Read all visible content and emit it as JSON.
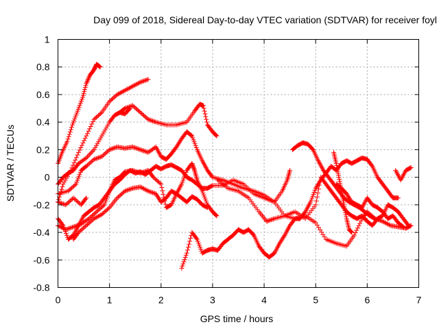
{
  "chart_data": {
    "type": "scatter",
    "title": "Day 099 of 2018, Sidereal Day-to-day VTEC variation (SDTVAR) for receiver foyl",
    "xlabel": "GPS time / hours",
    "ylabel": "SDTVAR / TECUs",
    "xlim": [
      0,
      7
    ],
    "ylim": [
      -0.8,
      1.0
    ],
    "xticks": [
      "0",
      "1",
      "2",
      "3",
      "4",
      "5",
      "6",
      "7"
    ],
    "yticks": [
      "1",
      "0.8",
      "0.6",
      "0.4",
      "0.2",
      "0",
      "-0.2",
      "-0.4",
      "-0.6",
      "-0.8"
    ],
    "grid": true,
    "marker": "+",
    "color": "#ff0000",
    "traces": [
      [
        [
          0.0,
          0.1
        ],
        [
          0.08,
          0.18
        ],
        [
          0.18,
          0.26
        ],
        [
          0.28,
          0.38
        ],
        [
          0.38,
          0.48
        ],
        [
          0.48,
          0.58
        ],
        [
          0.55,
          0.68
        ],
        [
          0.62,
          0.74
        ],
        [
          0.7,
          0.78
        ],
        [
          0.75,
          0.82
        ],
        [
          0.82,
          0.8
        ]
      ],
      [
        [
          0.0,
          -0.18
        ],
        [
          0.1,
          -0.05
        ],
        [
          0.25,
          0.05
        ],
        [
          0.4,
          0.18
        ],
        [
          0.55,
          0.3
        ],
        [
          0.7,
          0.42
        ],
        [
          0.85,
          0.47
        ],
        [
          1.0,
          0.55
        ],
        [
          1.15,
          0.6
        ],
        [
          1.3,
          0.63
        ],
        [
          1.45,
          0.66
        ],
        [
          1.6,
          0.69
        ],
        [
          1.75,
          0.71
        ]
      ],
      [
        [
          0.0,
          -0.05
        ],
        [
          0.1,
          0.0
        ],
        [
          0.2,
          0.03
        ],
        [
          0.3,
          0.05
        ],
        [
          0.4,
          0.1
        ],
        [
          0.55,
          0.14
        ],
        [
          0.7,
          0.2
        ],
        [
          0.85,
          0.3
        ],
        [
          1.0,
          0.4
        ],
        [
          1.1,
          0.45
        ],
        [
          1.2,
          0.47
        ],
        [
          1.3,
          0.5
        ],
        [
          1.45,
          0.52
        ],
        [
          1.6,
          0.47
        ],
        [
          1.75,
          0.42
        ],
        [
          1.9,
          0.4
        ],
        [
          2.1,
          0.38
        ],
        [
          2.3,
          0.38
        ],
        [
          2.5,
          0.4
        ],
        [
          2.65,
          0.48
        ],
        [
          2.75,
          0.53
        ],
        [
          2.82,
          0.52
        ],
        [
          2.9,
          0.38
        ],
        [
          3.0,
          0.33
        ],
        [
          3.08,
          0.3
        ]
      ],
      [
        [
          1.2,
          0.47
        ],
        [
          1.3,
          0.46
        ],
        [
          1.4,
          0.5
        ]
      ],
      [
        [
          0.0,
          -0.12
        ],
        [
          0.2,
          -0.1
        ],
        [
          0.35,
          -0.05
        ],
        [
          0.45,
          0.05
        ],
        [
          0.55,
          0.08
        ],
        [
          0.7,
          0.13
        ],
        [
          0.85,
          0.15
        ],
        [
          1.0,
          0.2
        ],
        [
          1.15,
          0.22
        ],
        [
          1.3,
          0.21
        ],
        [
          1.45,
          0.22
        ],
        [
          1.6,
          0.2
        ],
        [
          1.75,
          0.18
        ],
        [
          1.9,
          0.22
        ],
        [
          2.0,
          0.15
        ],
        [
          2.1,
          0.13
        ],
        [
          2.2,
          0.17
        ],
        [
          2.3,
          0.22
        ],
        [
          2.4,
          0.28
        ],
        [
          2.5,
          0.33
        ],
        [
          2.6,
          0.3
        ],
        [
          2.7,
          0.2
        ],
        [
          2.8,
          0.12
        ],
        [
          2.9,
          0.05
        ],
        [
          3.0,
          0.0
        ],
        [
          3.2,
          -0.02
        ],
        [
          3.4,
          -0.05
        ],
        [
          3.6,
          -0.08
        ],
        [
          3.8,
          -0.1
        ],
        [
          4.0,
          -0.13
        ],
        [
          4.2,
          -0.18
        ],
        [
          4.35,
          -0.1
        ],
        [
          4.45,
          -0.02
        ],
        [
          4.5,
          0.05
        ]
      ],
      [
        [
          0.0,
          -0.35
        ],
        [
          0.15,
          -0.38
        ],
        [
          0.3,
          -0.36
        ],
        [
          0.45,
          -0.34
        ],
        [
          0.6,
          -0.3
        ],
        [
          0.75,
          -0.25
        ],
        [
          0.9,
          -0.2
        ],
        [
          1.0,
          -0.1
        ],
        [
          1.1,
          -0.02
        ],
        [
          1.2,
          0.0
        ],
        [
          1.3,
          0.04
        ],
        [
          1.45,
          0.05
        ],
        [
          1.6,
          0.03
        ],
        [
          1.75,
          0.05
        ],
        [
          1.85,
          0.0
        ],
        [
          2.0,
          -0.05
        ],
        [
          2.1,
          -0.22
        ],
        [
          2.2,
          -0.2
        ],
        [
          2.3,
          -0.12
        ],
        [
          2.4,
          -0.05
        ],
        [
          2.5,
          0.05
        ],
        [
          2.6,
          0.1
        ],
        [
          2.65,
          0.05
        ],
        [
          2.7,
          -0.02
        ],
        [
          2.8,
          -0.1
        ],
        [
          2.9,
          -0.2
        ],
        [
          3.0,
          -0.25
        ],
        [
          3.08,
          -0.28
        ]
      ],
      [
        [
          0.0,
          -0.18
        ],
        [
          0.15,
          -0.2
        ],
        [
          0.3,
          -0.15
        ],
        [
          0.45,
          -0.2
        ],
        [
          0.55,
          -0.15
        ]
      ],
      [
        [
          0.0,
          -0.3
        ],
        [
          0.1,
          -0.35
        ],
        [
          0.2,
          -0.45
        ],
        [
          0.3,
          -0.42
        ],
        [
          0.4,
          -0.35
        ],
        [
          0.5,
          -0.28
        ],
        [
          0.6,
          -0.25
        ],
        [
          0.7,
          -0.22
        ],
        [
          0.8,
          -0.2
        ],
        [
          0.9,
          -0.15
        ],
        [
          1.0,
          -0.1
        ],
        [
          1.1,
          -0.05
        ],
        [
          1.2,
          -0.02
        ],
        [
          1.3,
          0.02
        ],
        [
          1.4,
          0.05
        ],
        [
          1.5,
          0.03
        ],
        [
          1.6,
          0.04
        ],
        [
          1.7,
          0.02
        ],
        [
          1.8,
          0.05
        ],
        [
          1.9,
          0.08
        ],
        [
          2.0,
          0.06
        ],
        [
          2.1,
          0.08
        ],
        [
          2.2,
          0.09
        ],
        [
          2.3,
          0.07
        ],
        [
          2.4,
          0.05
        ],
        [
          2.5,
          0.0
        ],
        [
          2.6,
          -0.02
        ],
        [
          2.7,
          -0.05
        ],
        [
          2.8,
          -0.08
        ],
        [
          2.9,
          -0.08
        ],
        [
          3.0,
          -0.06
        ],
        [
          3.2,
          -0.06
        ],
        [
          3.4,
          -0.02
        ],
        [
          3.6,
          -0.05
        ],
        [
          3.8,
          -0.12
        ],
        [
          4.0,
          -0.15
        ],
        [
          4.2,
          -0.18
        ],
        [
          4.4,
          -0.28
        ],
        [
          4.6,
          -0.3
        ],
        [
          4.8,
          -0.28
        ],
        [
          5.0,
          -0.33
        ],
        [
          5.2,
          -0.45
        ],
        [
          5.4,
          -0.48
        ],
        [
          5.6,
          -0.5
        ],
        [
          5.75,
          -0.42
        ],
        [
          5.9,
          -0.3
        ],
        [
          6.0,
          -0.25
        ],
        [
          6.15,
          -0.3
        ],
        [
          6.3,
          -0.32
        ],
        [
          6.45,
          -0.35
        ],
        [
          6.6,
          -0.36
        ],
        [
          6.75,
          -0.37
        ],
        [
          6.85,
          -0.35
        ]
      ],
      [
        [
          0.3,
          -0.45
        ],
        [
          0.4,
          -0.4
        ],
        [
          0.55,
          -0.35
        ],
        [
          0.7,
          -0.3
        ],
        [
          0.85,
          -0.27
        ],
        [
          1.0,
          -0.22
        ],
        [
          1.15,
          -0.15
        ],
        [
          1.3,
          -0.1
        ],
        [
          1.45,
          -0.08
        ],
        [
          1.6,
          -0.07
        ],
        [
          1.75,
          -0.1
        ],
        [
          1.9,
          -0.12
        ],
        [
          2.0,
          -0.18
        ],
        [
          2.1,
          -0.15
        ],
        [
          2.2,
          -0.1
        ],
        [
          2.3,
          -0.12
        ],
        [
          2.4,
          -0.15
        ],
        [
          2.5,
          -0.18
        ],
        [
          2.6,
          -0.14
        ],
        [
          2.7,
          -0.16
        ],
        [
          2.8,
          -0.2
        ],
        [
          2.9,
          -0.22
        ]
      ],
      [
        [
          2.4,
          -0.66
        ],
        [
          2.5,
          -0.55
        ],
        [
          2.6,
          -0.4
        ],
        [
          2.7,
          -0.45
        ],
        [
          2.8,
          -0.55
        ],
        [
          2.9,
          -0.53
        ],
        [
          3.0,
          -0.52
        ],
        [
          3.1,
          -0.53
        ],
        [
          3.2,
          -0.48
        ],
        [
          3.3,
          -0.45
        ],
        [
          3.4,
          -0.42
        ],
        [
          3.5,
          -0.38
        ],
        [
          3.6,
          -0.4
        ],
        [
          3.7,
          -0.38
        ],
        [
          3.8,
          -0.42
        ],
        [
          3.9,
          -0.5
        ],
        [
          4.0,
          -0.55
        ],
        [
          4.1,
          -0.58
        ],
        [
          4.2,
          -0.55
        ],
        [
          4.3,
          -0.48
        ],
        [
          4.4,
          -0.42
        ],
        [
          4.5,
          -0.35
        ],
        [
          4.6,
          -0.3
        ],
        [
          4.7,
          -0.3
        ],
        [
          4.8,
          -0.25
        ],
        [
          4.9,
          -0.18
        ],
        [
          5.0,
          -0.08
        ],
        [
          5.1,
          -0.02
        ],
        [
          5.2,
          0.03
        ],
        [
          5.3,
          0.08
        ],
        [
          5.4,
          0.05
        ],
        [
          5.5,
          0.1
        ],
        [
          5.6,
          0.12
        ],
        [
          5.7,
          0.1
        ],
        [
          5.8,
          0.12
        ],
        [
          5.9,
          0.14
        ],
        [
          6.0,
          0.13
        ],
        [
          6.1,
          0.08
        ],
        [
          6.2,
          0.0
        ],
        [
          6.3,
          -0.05
        ],
        [
          6.4,
          -0.1
        ],
        [
          6.5,
          -0.15
        ],
        [
          6.6,
          -0.15
        ]
      ],
      [
        [
          3.1,
          -0.02
        ],
        [
          3.3,
          -0.08
        ],
        [
          3.5,
          -0.1
        ],
        [
          3.7,
          -0.15
        ],
        [
          3.9,
          -0.25
        ],
        [
          4.05,
          -0.32
        ],
        [
          4.2,
          -0.3
        ],
        [
          4.4,
          -0.28
        ],
        [
          4.6,
          -0.25
        ],
        [
          4.8,
          -0.3
        ],
        [
          5.0,
          -0.2
        ],
        [
          5.1,
          0.0
        ],
        [
          5.2,
          -0.05
        ],
        [
          5.3,
          -0.1
        ],
        [
          5.4,
          -0.15
        ],
        [
          5.5,
          -0.2
        ],
        [
          5.6,
          -0.25
        ],
        [
          5.7,
          -0.28
        ],
        [
          5.8,
          -0.3
        ],
        [
          5.9,
          -0.28
        ],
        [
          6.0,
          -0.32
        ],
        [
          6.1,
          -0.35
        ],
        [
          6.2,
          -0.3
        ],
        [
          6.3,
          -0.28
        ],
        [
          6.4,
          -0.2
        ],
        [
          6.5,
          -0.22
        ],
        [
          6.6,
          -0.25
        ],
        [
          6.7,
          -0.3
        ],
        [
          6.8,
          -0.35
        ]
      ],
      [
        [
          4.55,
          0.2
        ],
        [
          4.65,
          0.23
        ],
        [
          4.75,
          0.25
        ],
        [
          4.85,
          0.24
        ],
        [
          4.95,
          0.2
        ],
        [
          5.05,
          0.12
        ],
        [
          5.15,
          0.05
        ],
        [
          5.25,
          0.0
        ],
        [
          5.35,
          -0.05
        ],
        [
          5.45,
          -0.1
        ],
        [
          5.55,
          -0.15
        ],
        [
          5.65,
          -0.18
        ],
        [
          5.75,
          -0.2
        ],
        [
          5.85,
          -0.22
        ],
        [
          5.95,
          -0.25
        ],
        [
          6.05,
          -0.28
        ],
        [
          6.15,
          -0.3
        ]
      ],
      [
        [
          5.35,
          0.18
        ],
        [
          5.4,
          0.1
        ],
        [
          5.45,
          0.0
        ],
        [
          5.5,
          -0.1
        ],
        [
          5.55,
          -0.2
        ],
        [
          5.6,
          -0.3
        ],
        [
          5.65,
          -0.38
        ],
        [
          5.7,
          -0.4
        ]
      ],
      [
        [
          5.4,
          -0.05
        ],
        [
          5.5,
          -0.08
        ],
        [
          5.6,
          -0.12
        ],
        [
          5.7,
          -0.18
        ],
        [
          5.8,
          -0.2
        ],
        [
          5.9,
          -0.22
        ],
        [
          6.0,
          -0.15
        ],
        [
          6.1,
          -0.2
        ],
        [
          6.2,
          -0.22
        ],
        [
          6.3,
          -0.25
        ],
        [
          6.4,
          -0.3
        ],
        [
          6.5,
          -0.28
        ],
        [
          6.6,
          -0.33
        ],
        [
          6.7,
          -0.36
        ]
      ],
      [
        [
          6.55,
          0.05
        ],
        [
          6.65,
          -0.02
        ],
        [
          6.75,
          0.05
        ],
        [
          6.85,
          0.07
        ]
      ]
    ]
  }
}
